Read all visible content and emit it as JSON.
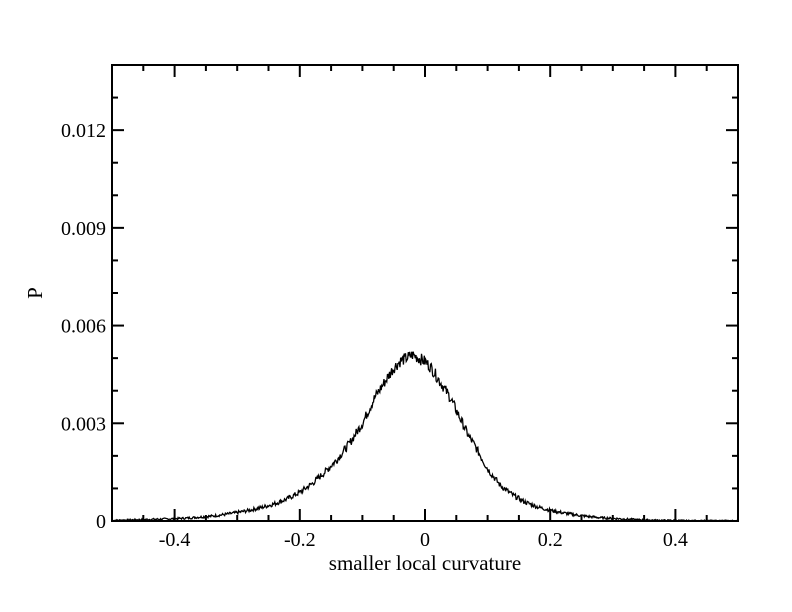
{
  "chart_data": {
    "type": "line",
    "xlabel": "smaller local curvature",
    "ylabel": "P",
    "xlim": [
      -0.5,
      0.5
    ],
    "ylim": [
      0,
      0.014
    ],
    "x_ticks": [
      -0.4,
      -0.2,
      0,
      0.2,
      0.4
    ],
    "x_tick_labels": [
      "-0.4",
      "-0.2",
      "0",
      "0.2",
      "0.4"
    ],
    "y_ticks": [
      0,
      0.003,
      0.006,
      0.009,
      0.012
    ],
    "y_tick_labels": [
      "0",
      "0.003",
      "0.006",
      "0.009",
      "0.012"
    ],
    "grid": false,
    "legend": "none",
    "line_color": "#000000",
    "series": [
      {
        "x": [
          -0.5,
          -0.48,
          -0.46,
          -0.44,
          -0.42,
          -0.4,
          -0.38,
          -0.36,
          -0.34,
          -0.32,
          -0.3,
          -0.28,
          -0.26,
          -0.24,
          -0.22,
          -0.2,
          -0.18,
          -0.16,
          -0.14,
          -0.12,
          -0.1,
          -0.09,
          -0.08,
          -0.07,
          -0.06,
          -0.05,
          -0.04,
          -0.03,
          -0.02,
          -0.01,
          0,
          0.01,
          0.02,
          0.03,
          0.04,
          0.05,
          0.06,
          0.07,
          0.08,
          0.1,
          0.12,
          0.14,
          0.16,
          0.18,
          0.2,
          0.22,
          0.24,
          0.26,
          0.28,
          0.3,
          0.32,
          0.34,
          0.36,
          0.38,
          0.4,
          0.42,
          0.44,
          0.46,
          0.48,
          0.5
        ],
        "values": [
          2e-05,
          3e-05,
          4e-05,
          5e-05,
          6e-05,
          7e-05,
          9e-05,
          0.00012,
          0.00015,
          0.0002,
          0.00026,
          0.00033,
          0.00042,
          0.00053,
          0.00068,
          0.00088,
          0.00115,
          0.0015,
          0.0019,
          0.0024,
          0.003,
          0.0034,
          0.0038,
          0.0041,
          0.0044,
          0.0047,
          0.0049,
          0.005,
          0.0051,
          0.005,
          0.0049,
          0.0047,
          0.0044,
          0.0041,
          0.0038,
          0.0034,
          0.003,
          0.0026,
          0.0023,
          0.0016,
          0.0011,
          0.0008,
          0.00058,
          0.00043,
          0.00033,
          0.00025,
          0.00019,
          0.00014,
          0.0001,
          8e-05,
          6e-05,
          4e-05,
          3e-05,
          2e-05,
          2e-05,
          1e-05,
          1e-05,
          1e-05,
          1e-05,
          1e-05
        ]
      }
    ]
  }
}
